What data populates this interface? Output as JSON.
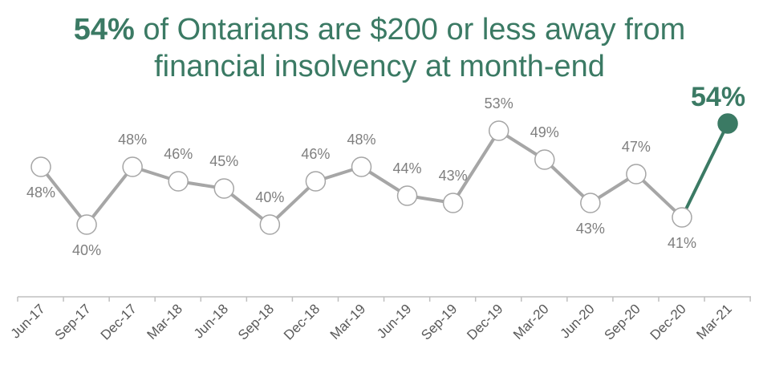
{
  "chart_data": {
    "type": "line",
    "title_highlight": "54%",
    "title_line1_rest": " of Ontarians are $200 or less away from",
    "title_line2": "financial insolvency at month-end",
    "categories": [
      "Jun-17",
      "Sep-17",
      "Dec-17",
      "Mar-18",
      "Jun-18",
      "Sep-18",
      "Dec-18",
      "Mar-19",
      "Jun-19",
      "Sep-19",
      "Dec-19",
      "Mar-20",
      "Jun-20",
      "Sep-20",
      "Dec-20",
      "Mar-21"
    ],
    "values": [
      48,
      40,
      48,
      46,
      45,
      40,
      46,
      48,
      44,
      43,
      53,
      49,
      43,
      47,
      41,
      54
    ],
    "labels": [
      "48%",
      "40%",
      "48%",
      "46%",
      "45%",
      "40%",
      "46%",
      "48%",
      "44%",
      "43%",
      "53%",
      "49%",
      "43%",
      "47%",
      "41%",
      "54%"
    ],
    "label_position": [
      "below",
      "below",
      "above",
      "above",
      "above",
      "above",
      "above",
      "above",
      "above",
      "above",
      "above",
      "above",
      "below",
      "above",
      "below",
      "above"
    ],
    "ylim": [
      30,
      56
    ],
    "xlabel": "",
    "ylabel": "",
    "grid": false,
    "colors": {
      "series": "#a6a6a6",
      "highlight": "#3b7a64",
      "label": "#7f7f7f"
    }
  }
}
